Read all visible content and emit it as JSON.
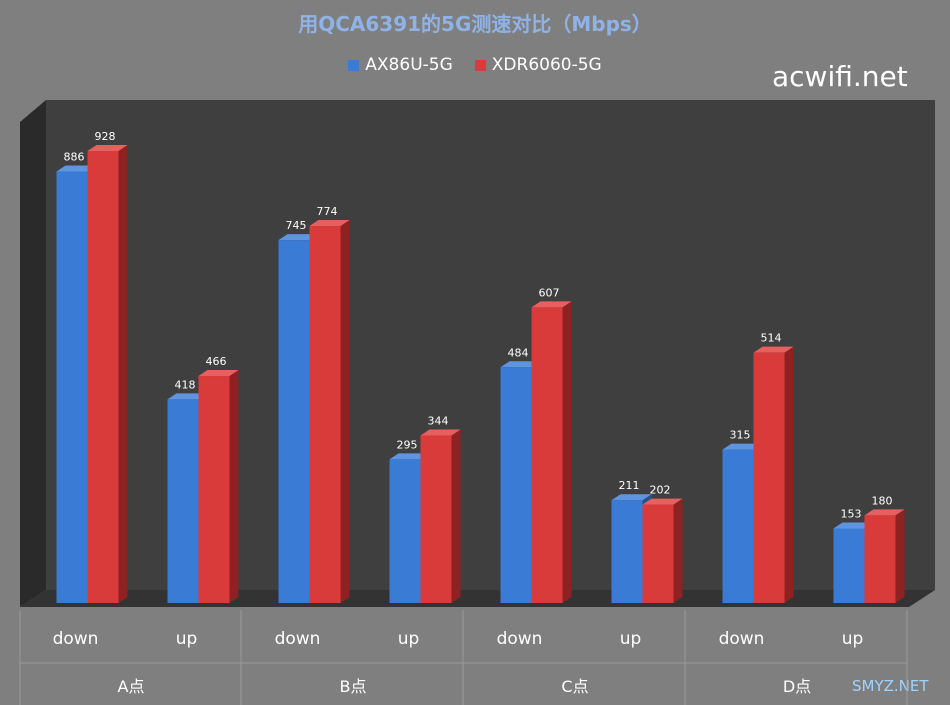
{
  "title": "用QCA6391的5G测速对比（Mbps）",
  "watermark": "acwifi.net",
  "watermark_2": "SMYZ.NET",
  "colors": {
    "series_1": "#3a7bd5",
    "series_2": "#d93a3a"
  },
  "chart_data": {
    "type": "bar",
    "title": "用QCA6391的5G测速对比（Mbps）",
    "groups": [
      "A点",
      "B点",
      "C点",
      "D点"
    ],
    "categories": [
      "down",
      "up",
      "down",
      "up",
      "down",
      "up",
      "down",
      "up"
    ],
    "series": [
      {
        "name": "AX86U-5G",
        "values": [
          886,
          418,
          745,
          295,
          484,
          211,
          315,
          153
        ]
      },
      {
        "name": "XDR6060-5G",
        "values": [
          928,
          466,
          774,
          344,
          607,
          202,
          514,
          180
        ]
      }
    ],
    "ylim": [
      0,
      1000
    ],
    "grid": false,
    "legend": "top"
  }
}
